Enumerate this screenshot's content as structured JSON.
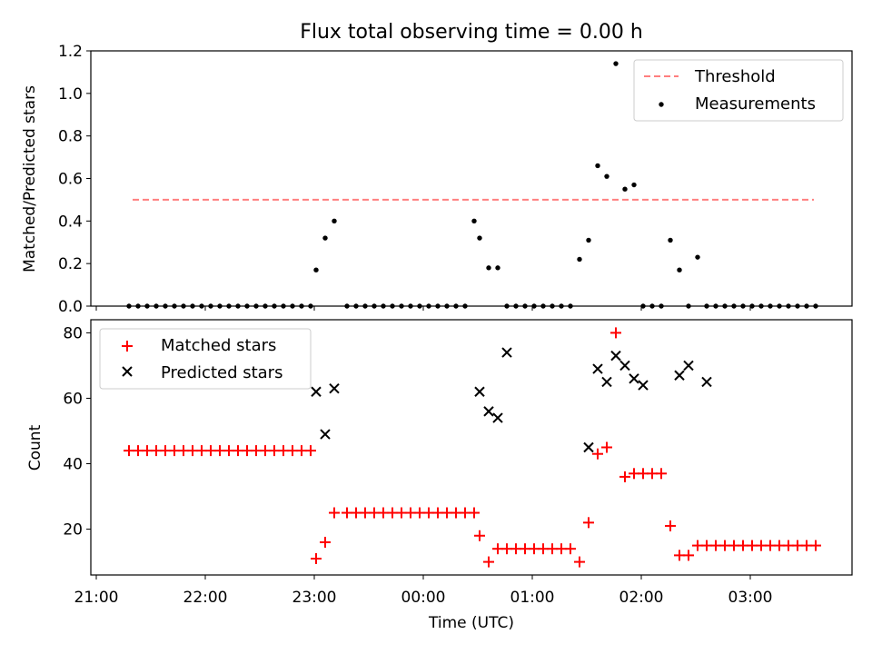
{
  "title": "Flux total observing time = 0.00 h",
  "x_tick_labels": [
    "21:00",
    "22:00",
    "23:00",
    "00:00",
    "01:00",
    "02:00",
    "03:00"
  ],
  "chart_data": [
    {
      "type": "scatter",
      "ylabel": "Matched/Predicted stars",
      "ylim": [
        0,
        1.2
      ],
      "yticks": [
        0.0,
        0.2,
        0.4,
        0.6,
        0.8,
        1.0,
        1.2
      ],
      "ytick_labels": [
        "0.0",
        "0.2",
        "0.4",
        "0.6",
        "0.8",
        "1.0",
        "1.2"
      ],
      "legend_position": "top-right",
      "threshold": {
        "name": "Threshold",
        "x": [
          "21:20",
          "03:35"
        ],
        "y": 0.5,
        "color": "#ff7f7f"
      },
      "measurements": {
        "name": "Measurements",
        "color": "#000000",
        "x": [
          "21:18",
          "21:23",
          "21:28",
          "21:33",
          "21:38",
          "21:43",
          "21:48",
          "21:53",
          "21:58",
          "22:03",
          "22:08",
          "22:13",
          "22:18",
          "22:23",
          "22:28",
          "22:33",
          "22:38",
          "22:43",
          "22:48",
          "22:53",
          "22:58",
          "23:01",
          "23:06",
          "23:11",
          "23:18",
          "23:23",
          "23:28",
          "23:33",
          "23:38",
          "23:43",
          "23:48",
          "23:53",
          "23:58",
          "00:03",
          "00:08",
          "00:13",
          "00:18",
          "00:23",
          "00:28",
          "00:31",
          "00:36",
          "00:41",
          "00:46",
          "00:51",
          "00:56",
          "01:01",
          "01:06",
          "01:11",
          "01:16",
          "01:21",
          "01:26",
          "01:31",
          "01:36",
          "01:41",
          "01:46",
          "01:51",
          "01:56",
          "02:01",
          "02:06",
          "02:11",
          "02:16",
          "02:21",
          "02:26",
          "02:31",
          "02:36",
          "02:41",
          "02:46",
          "02:51",
          "02:56",
          "03:01",
          "03:06",
          "03:11",
          "03:16",
          "03:21",
          "03:26",
          "03:31",
          "03:36"
        ],
        "y": [
          0,
          0,
          0,
          0,
          0,
          0,
          0,
          0,
          0,
          0,
          0,
          0,
          0,
          0,
          0,
          0,
          0,
          0,
          0,
          0,
          0,
          0.17,
          0.32,
          0.4,
          0,
          0,
          0,
          0,
          0,
          0,
          0,
          0,
          0,
          0,
          0,
          0,
          0,
          0,
          0.4,
          0.32,
          0.18,
          0.18,
          0,
          0,
          0,
          0,
          0,
          0,
          0,
          0,
          0.22,
          0.31,
          0.66,
          0.61,
          1.14,
          0.55,
          0.57,
          0,
          0,
          0,
          0.31,
          0.17,
          0,
          0.23,
          0,
          0,
          0,
          0,
          0,
          0,
          0,
          0,
          0,
          0,
          0,
          0,
          0
        ]
      }
    },
    {
      "type": "scatter",
      "xlabel": "Time (UTC)",
      "ylabel": "Count",
      "ylim": [
        6,
        84
      ],
      "yticks": [
        20,
        40,
        60,
        80
      ],
      "ytick_labels": [
        "20",
        "40",
        "60",
        "80"
      ],
      "legend_position": "top-left",
      "series": [
        {
          "name": "Matched stars",
          "marker": "plus",
          "color": "#ff0000",
          "x": [
            "21:18",
            "21:23",
            "21:28",
            "21:33",
            "21:38",
            "21:43",
            "21:48",
            "21:53",
            "21:58",
            "22:03",
            "22:08",
            "22:13",
            "22:18",
            "22:23",
            "22:28",
            "22:33",
            "22:38",
            "22:43",
            "22:48",
            "22:53",
            "22:58",
            "23:01",
            "23:06",
            "23:11",
            "23:18",
            "23:23",
            "23:28",
            "23:33",
            "23:38",
            "23:43",
            "23:48",
            "23:53",
            "23:58",
            "00:03",
            "00:08",
            "00:13",
            "00:18",
            "00:23",
            "00:28",
            "00:31",
            "00:36",
            "00:41",
            "00:46",
            "00:51",
            "00:56",
            "01:01",
            "01:06",
            "01:11",
            "01:16",
            "01:21",
            "01:26",
            "01:31",
            "01:36",
            "01:41",
            "01:46",
            "01:51",
            "01:56",
            "02:01",
            "02:06",
            "02:11",
            "02:16",
            "02:21",
            "02:26",
            "02:31",
            "02:36",
            "02:41",
            "02:46",
            "02:51",
            "02:56",
            "03:01",
            "03:06",
            "03:11",
            "03:16",
            "03:21",
            "03:26",
            "03:31",
            "03:36"
          ],
          "y": [
            44,
            44,
            44,
            44,
            44,
            44,
            44,
            44,
            44,
            44,
            44,
            44,
            44,
            44,
            44,
            44,
            44,
            44,
            44,
            44,
            44,
            11,
            16,
            25,
            25,
            25,
            25,
            25,
            25,
            25,
            25,
            25,
            25,
            25,
            25,
            25,
            25,
            25,
            25,
            18,
            10,
            14,
            14,
            14,
            14,
            14,
            14,
            14,
            14,
            14,
            10,
            22,
            43,
            45,
            80,
            36,
            37,
            37,
            37,
            37,
            21,
            12,
            12,
            15,
            15,
            15,
            15,
            15,
            15,
            15,
            15,
            15,
            15,
            15,
            15,
            15,
            15
          ]
        },
        {
          "name": "Predicted stars",
          "marker": "x",
          "color": "#000000",
          "x": [
            "23:01",
            "23:06",
            "23:11",
            "00:31",
            "00:36",
            "00:41",
            "00:46",
            "01:31",
            "01:36",
            "01:41",
            "01:46",
            "01:51",
            "01:56",
            "02:01",
            "02:21",
            "02:26",
            "02:36"
          ],
          "y": [
            62,
            49,
            63,
            62,
            56,
            54,
            74,
            45,
            69,
            65,
            73,
            70,
            66,
            64,
            67,
            70,
            65
          ]
        }
      ]
    }
  ]
}
